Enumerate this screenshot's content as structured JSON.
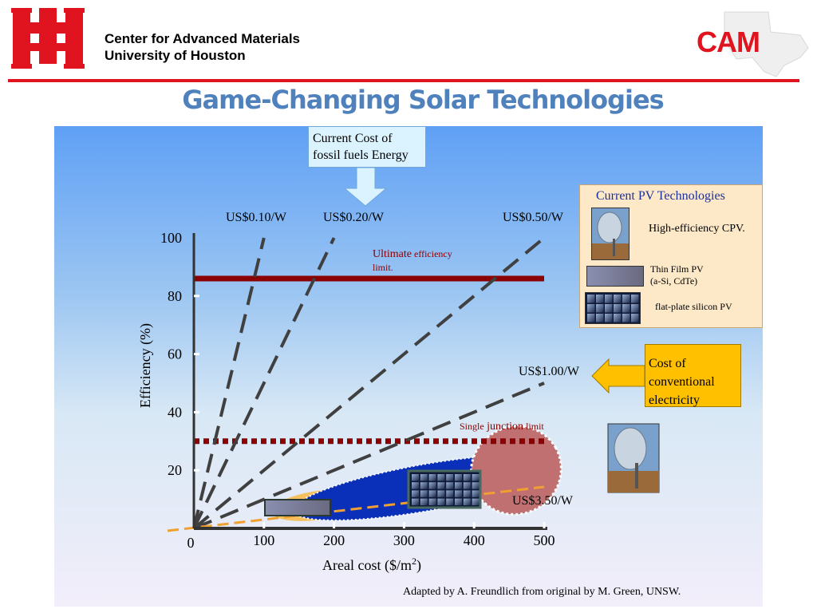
{
  "header": {
    "institution_line1": "Center for Advanced Materials",
    "institution_line2": "University of Houston",
    "logo_right_text": "CAM",
    "accent_color": "#e0141e"
  },
  "title": "Game-Changing Solar Technologies",
  "callout_top": {
    "line1": "Current Cost of",
    "line2": "fossil fuels Energy"
  },
  "pv_legend": {
    "title": "Current PV Technologies",
    "items": [
      {
        "label": "High-efficiency CPV.",
        "icon": "cpv-dish-icon"
      },
      {
        "label_line1": "Thin Film PV",
        "label_line2": "(a-Si, CdTe)",
        "icon": "thin-film-icon"
      },
      {
        "label": "flat-plate  silicon PV",
        "icon": "silicon-panel-icon"
      }
    ]
  },
  "callout_cost": {
    "line1": "Cost of",
    "line2": "conventional",
    "line3": "electricity"
  },
  "credit": "Adapted by A. Freundlich from original by M. Green,  UNSW.",
  "chart_data": {
    "type": "line",
    "title": "",
    "xlabel_main": "Areal cost  ($/m",
    "xlabel_sup": "2",
    "xlabel_end": ")",
    "ylabel": "Efficiency (%)",
    "xlim": [
      0,
      500
    ],
    "ylim": [
      0,
      100
    ],
    "x_ticks": [
      "0",
      "100",
      "200",
      "300",
      "400",
      "500"
    ],
    "y_ticks": [
      "20",
      "40",
      "60",
      "80",
      "100"
    ],
    "cost_lines": [
      {
        "label": "US$0.10/W",
        "dollars_per_watt": 0.1,
        "color": "#404040"
      },
      {
        "label": "US$0.20/W",
        "dollars_per_watt": 0.2,
        "color": "#404040"
      },
      {
        "label": "US$0.50/W",
        "dollars_per_watt": 0.5,
        "color": "#404040"
      },
      {
        "label": "US$1.00/W",
        "dollars_per_watt": 1.0,
        "color": "#404040"
      },
      {
        "label": "US$3.50/W",
        "dollars_per_watt": 3.5,
        "color": "#f0a030"
      }
    ],
    "limits": [
      {
        "label_small1": "Ultimate",
        "label_small2": " efficiency",
        "label_small3": "limit.",
        "efficiency": 86,
        "style": "solid",
        "color": "#8b0000"
      },
      {
        "label_small1": "Single",
        "label_small2": " junction",
        "label_small3": " limit",
        "efficiency": 30,
        "style": "dotted",
        "color": "#8b0000"
      }
    ],
    "regions": [
      {
        "name": "thin-film",
        "color": "#f5c060",
        "cx": 180,
        "cy": 8,
        "rx": 70,
        "ry": 5
      },
      {
        "name": "silicon",
        "color": "#0a2fb8",
        "cx": 330,
        "cy": 14,
        "rx": 190,
        "ry": 8
      },
      {
        "name": "cpv",
        "color": "#c07070",
        "cx": 460,
        "cy": 20,
        "rx": 65,
        "ry": 15
      }
    ]
  }
}
